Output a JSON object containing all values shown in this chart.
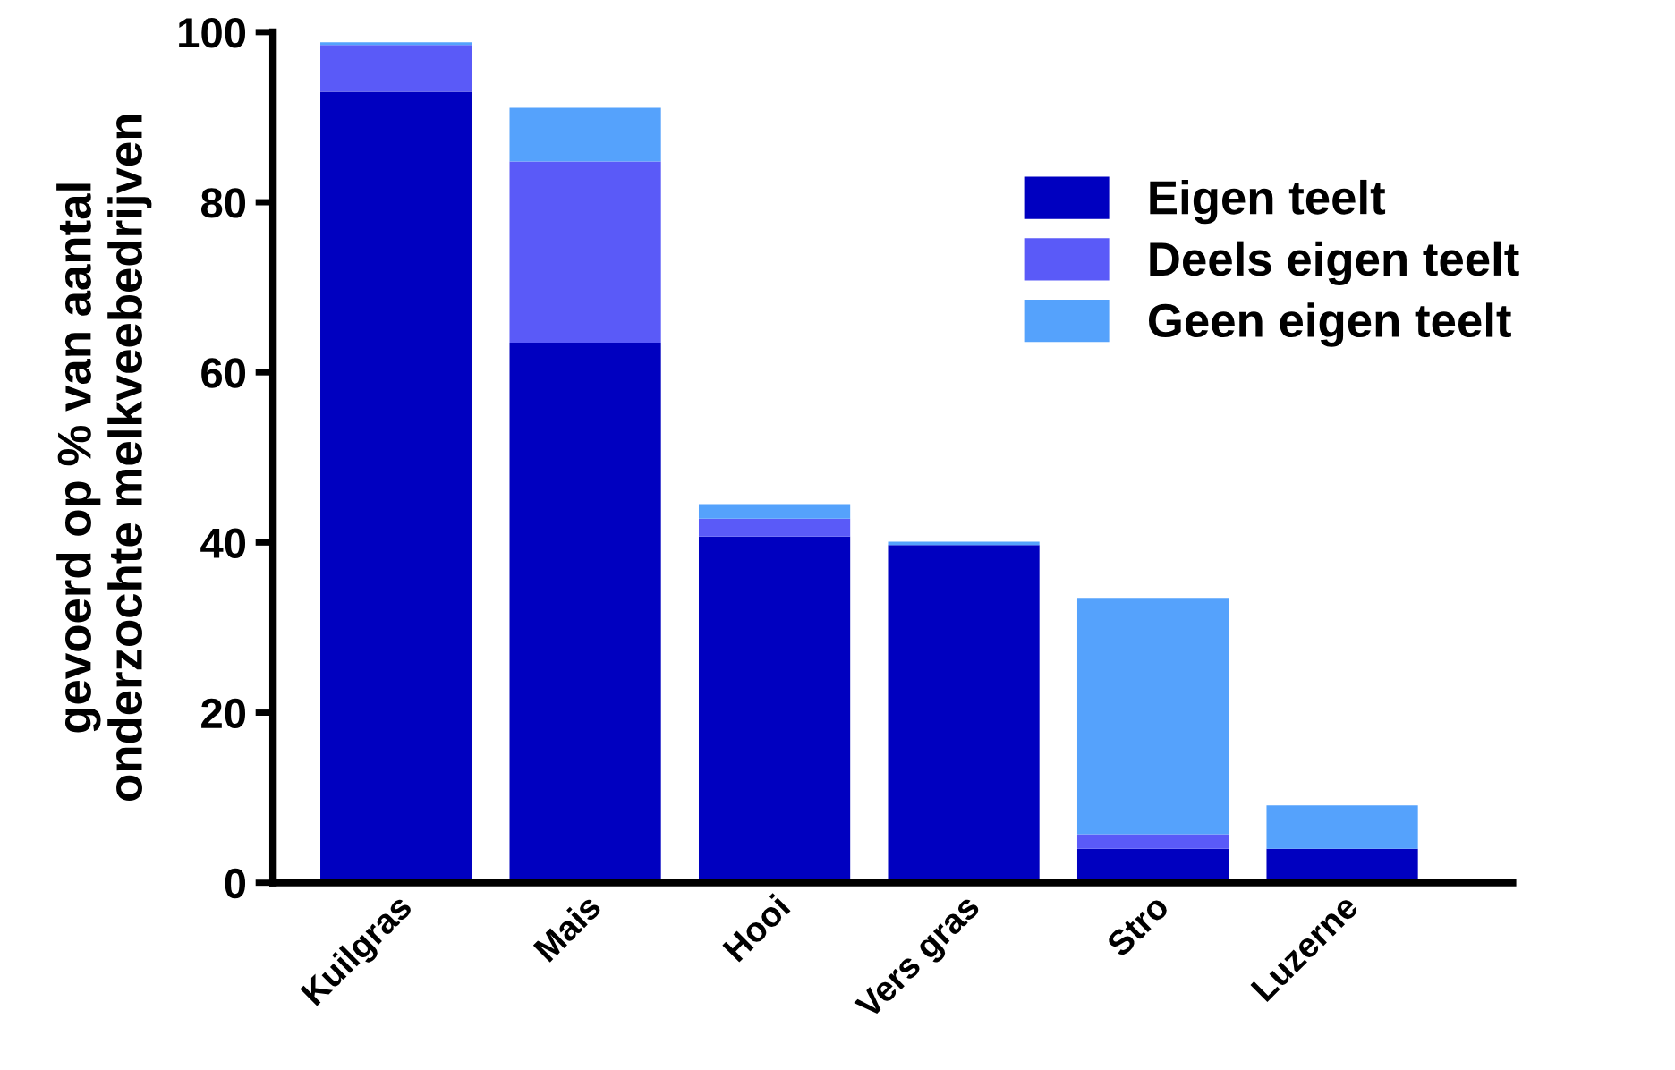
{
  "chart_data": {
    "type": "bar",
    "stacked": true,
    "ylabel": "gevoerd op % van aantal\nonderzochte melkveebedrijven",
    "categories": [
      "Kuilgras",
      "Mais",
      "Hooi",
      "Vers gras",
      "Stro",
      "Luzerne"
    ],
    "series": [
      {
        "name": "Eigen teelt",
        "color": "#0000c0",
        "values": [
          93,
          63.5,
          40.7,
          39.7,
          4.0,
          4.0
        ]
      },
      {
        "name": "Deels eigen teelt",
        "color": "#5a5af8",
        "values": [
          5.5,
          21.3,
          2.1,
          0,
          1.7,
          0
        ]
      },
      {
        "name": "Geen eigen teelt",
        "color": "#55a2fc",
        "values": [
          0.3,
          6.3,
          1.7,
          0.4,
          27.8,
          5.1
        ]
      }
    ],
    "ylim": [
      0,
      100
    ],
    "yticks": [
      0,
      20,
      40,
      60,
      80,
      100
    ],
    "grid": false,
    "legend": "top right"
  }
}
